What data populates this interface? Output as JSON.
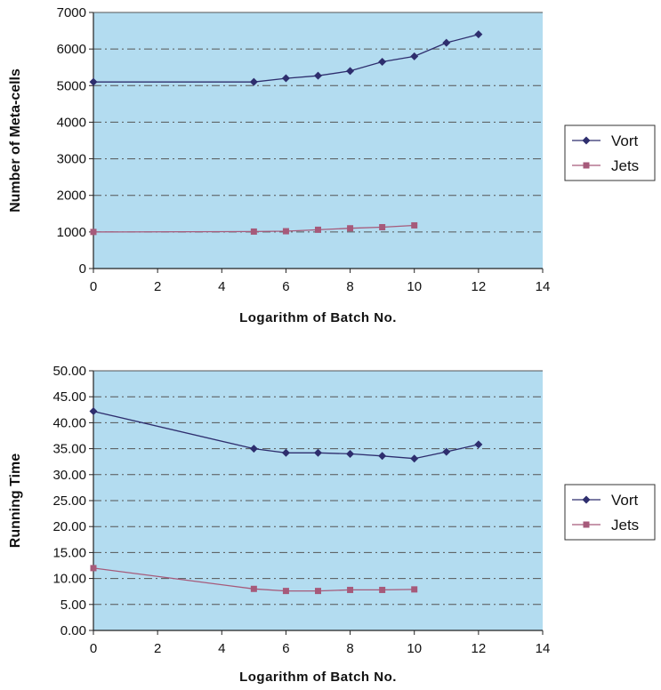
{
  "chart_data": [
    {
      "type": "line",
      "title": "",
      "xlabel": "Logarithm of Batch No.",
      "ylabel": "Number of Meta-cells",
      "xlim": [
        0,
        14
      ],
      "ylim": [
        0,
        7000
      ],
      "x_ticks": [
        "0",
        "2",
        "4",
        "6",
        "8",
        "10",
        "12",
        "14"
      ],
      "y_ticks": [
        "0",
        "1000",
        "2000",
        "3000",
        "4000",
        "5000",
        "6000",
        "7000"
      ],
      "grid": "horizontal dash-dot",
      "background": "#b3dcf0",
      "legend": "right",
      "series": [
        {
          "name": "Vort",
          "color": "#2e2e6e",
          "marker": "diamond",
          "x": [
            0,
            5,
            6,
            7,
            8,
            9,
            10,
            11,
            12
          ],
          "y": [
            5100,
            5100,
            5200,
            5270,
            5400,
            5650,
            5800,
            6170,
            6400
          ]
        },
        {
          "name": "Jets",
          "color": "#a65a7a",
          "marker": "square",
          "x": [
            0,
            5,
            6,
            7,
            8,
            9,
            10
          ],
          "y": [
            1000,
            1010,
            1020,
            1060,
            1100,
            1130,
            1180
          ]
        }
      ]
    },
    {
      "type": "line",
      "title": "",
      "xlabel": "Logarithm of Batch No.",
      "ylabel": "Running Time",
      "xlim": [
        0,
        14
      ],
      "ylim": [
        0,
        50
      ],
      "x_ticks": [
        "0",
        "2",
        "4",
        "6",
        "8",
        "10",
        "12",
        "14"
      ],
      "y_ticks": [
        "0.00",
        "5.00",
        "10.00",
        "15.00",
        "20.00",
        "25.00",
        "30.00",
        "35.00",
        "40.00",
        "45.00",
        "50.00"
      ],
      "grid": "horizontal dash-dot",
      "background": "#b3dcf0",
      "legend": "right",
      "series": [
        {
          "name": "Vort",
          "color": "#2e2e6e",
          "marker": "diamond",
          "x": [
            0,
            5,
            6,
            7,
            8,
            9,
            10,
            11,
            12
          ],
          "y": [
            42.2,
            35.0,
            34.2,
            34.2,
            34.0,
            33.6,
            33.1,
            34.4,
            35.8
          ]
        },
        {
          "name": "Jets",
          "color": "#a65a7a",
          "marker": "square",
          "x": [
            0,
            5,
            6,
            7,
            8,
            9,
            10
          ],
          "y": [
            12.0,
            8.0,
            7.6,
            7.6,
            7.8,
            7.8,
            7.9
          ]
        }
      ]
    }
  ]
}
